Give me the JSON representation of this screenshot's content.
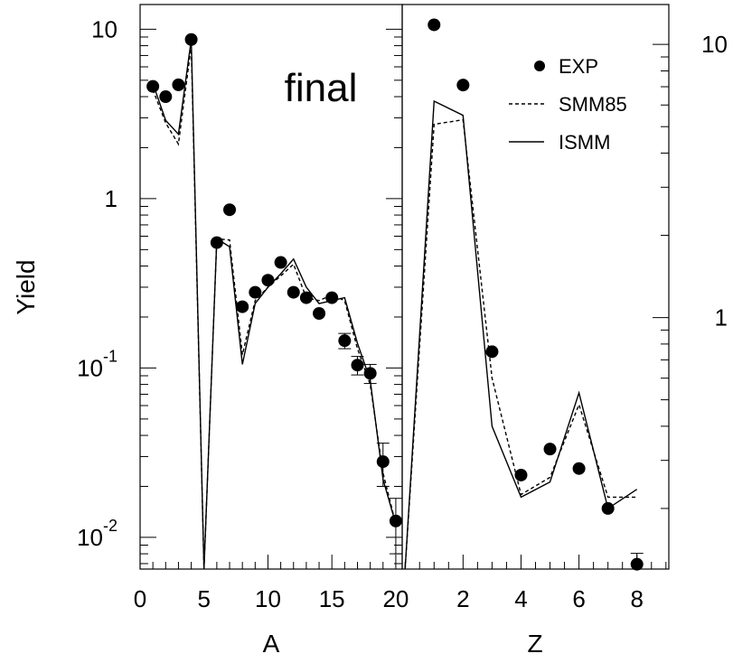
{
  "chart_data": [
    {
      "type": "scatter",
      "panel": "A",
      "label": "final",
      "xlabel": "A",
      "ylabel": "Yield",
      "yscale": "log",
      "xlim": [
        0,
        20.5
      ],
      "ylim": [
        0.0065,
        14
      ],
      "xticks": [
        0,
        5,
        10,
        15,
        20
      ],
      "xtick_labels": [
        "0",
        "5",
        "10",
        "15",
        "20"
      ],
      "yticks": [
        {
          "value": 10,
          "base": "10",
          "exp": ""
        },
        {
          "value": 1,
          "base": "1",
          "exp": ""
        },
        {
          "value": 0.1,
          "base": "10",
          "exp": "-1"
        },
        {
          "value": 0.01,
          "base": "10",
          "exp": "-2"
        }
      ],
      "series": [
        {
          "name": "EXP",
          "style": "points",
          "x": [
            1,
            2,
            3,
            4,
            6,
            7,
            8,
            9,
            10,
            11,
            12,
            13,
            14,
            15,
            16,
            17,
            18,
            19,
            20
          ],
          "y": [
            4.6,
            4.0,
            4.7,
            8.7,
            0.55,
            0.86,
            0.23,
            0.28,
            0.33,
            0.42,
            0.28,
            0.26,
            0.21,
            0.26,
            0.145,
            0.104,
            0.093,
            0.028,
            0.0125
          ],
          "err": [
            0,
            0,
            0,
            0,
            0,
            0,
            0,
            0,
            0,
            0,
            0,
            0,
            0,
            0,
            0.015,
            0.013,
            0.012,
            0.008,
            0.0045
          ]
        },
        {
          "name": "SMM85",
          "style": "dashed",
          "x": [
            1,
            2,
            3,
            4,
            5,
            6,
            7,
            8,
            9,
            10,
            11,
            12,
            13,
            14,
            15,
            16,
            17,
            18,
            19,
            20
          ],
          "y": [
            4.4,
            2.8,
            2.1,
            8.0,
            0.0065,
            0.58,
            0.57,
            0.12,
            0.25,
            0.3,
            0.35,
            0.41,
            0.26,
            0.25,
            0.27,
            0.25,
            0.13,
            0.08,
            0.024,
            0.012
          ]
        },
        {
          "name": "ISMM",
          "style": "solid",
          "x": [
            1,
            2,
            3,
            4,
            5,
            6,
            7,
            8,
            9,
            10,
            11,
            12,
            13,
            14,
            15,
            16,
            17,
            18,
            19,
            20
          ],
          "y": [
            4.8,
            2.9,
            2.4,
            8.7,
            0.0065,
            0.58,
            0.52,
            0.105,
            0.24,
            0.3,
            0.36,
            0.44,
            0.3,
            0.24,
            0.25,
            0.26,
            0.14,
            0.085,
            0.022,
            0.012
          ]
        }
      ]
    },
    {
      "type": "scatter",
      "panel": "Z",
      "xlabel": "Z",
      "yscale": "log",
      "xlim": [
        -0.1,
        9.1
      ],
      "ylim": [
        0.12,
        14
      ],
      "xticks": [
        2,
        4,
        6,
        8
      ],
      "xtick_labels": [
        "2",
        "4",
        "6",
        "8"
      ],
      "yticks": [
        {
          "value": 10,
          "base": "10",
          "exp": ""
        },
        {
          "value": 1,
          "base": "1",
          "exp": ""
        }
      ],
      "legend": {
        "position": "top-right"
      },
      "series": [
        {
          "name": "EXP",
          "style": "points",
          "x": [
            1,
            2,
            3,
            4,
            5,
            6,
            7,
            8
          ],
          "y": [
            11.8,
            7.1,
            0.75,
            0.265,
            0.33,
            0.28,
            0.2,
            0.125
          ],
          "err": [
            0,
            0,
            0,
            0,
            0,
            0,
            0,
            0.012
          ]
        },
        {
          "name": "SMM85",
          "style": "dashed",
          "x": [
            0,
            1,
            2,
            3,
            4,
            5,
            6,
            7,
            8
          ],
          "y": [
            0.12,
            5.1,
            5.3,
            0.6,
            0.225,
            0.26,
            0.48,
            0.22,
            0.22
          ]
        },
        {
          "name": "ISMM",
          "style": "solid",
          "x": [
            0,
            1,
            2,
            3,
            4,
            5,
            6,
            7,
            8
          ],
          "y": [
            0.12,
            6.2,
            5.5,
            0.4,
            0.22,
            0.25,
            0.53,
            0.2,
            0.235
          ]
        }
      ]
    }
  ]
}
